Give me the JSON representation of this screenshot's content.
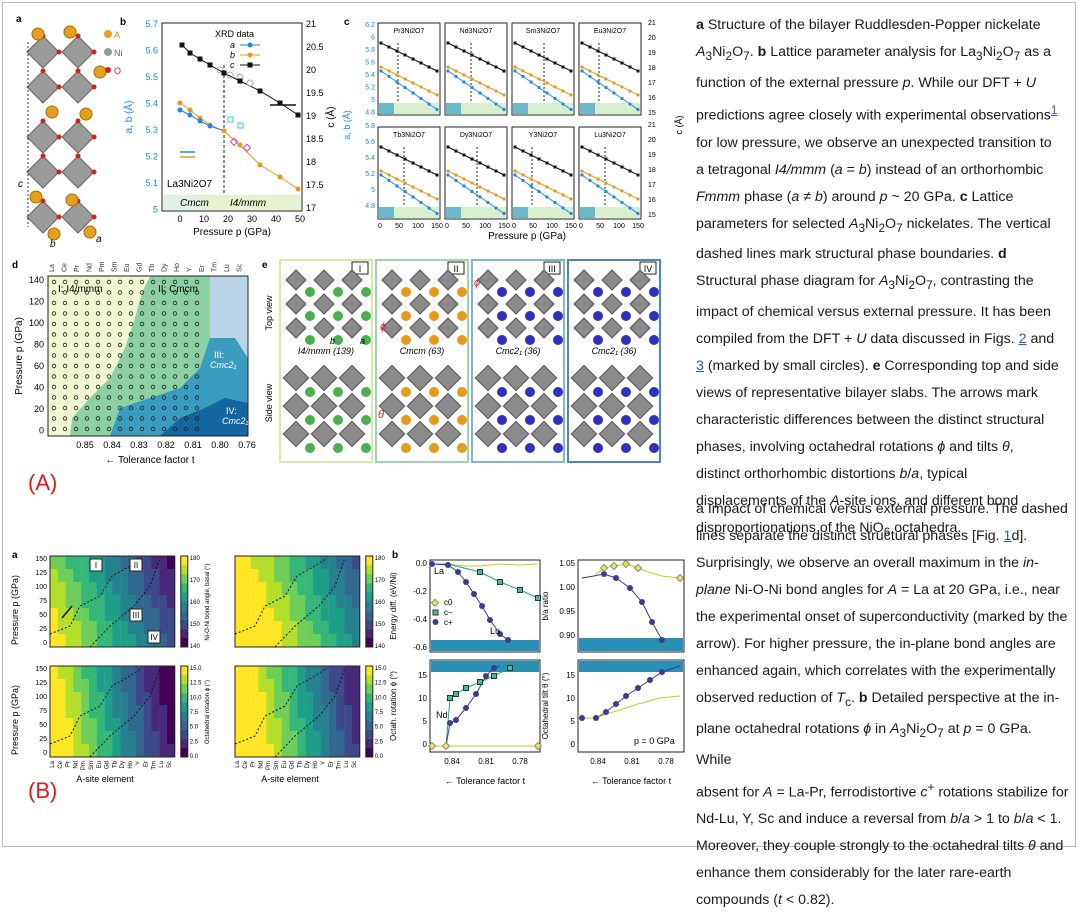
{
  "figure_A": {
    "panel_labels": {
      "a": "a",
      "b": "b",
      "c": "c",
      "d": "d",
      "e": "e"
    },
    "a": {
      "atom_A": "A",
      "atom_Ni": "Ni",
      "atom_O": "O",
      "axis_a": "a",
      "axis_b": "b",
      "axis_c": "c"
    },
    "b": {
      "legend_title": "XRD data",
      "legend_entries": [
        "a",
        "b",
        "c"
      ],
      "formula": "La3Ni2O7",
      "phase_left": "Cmcm",
      "phase_right": "I4/mmm",
      "xlabel": "Pressure p (GPa)",
      "ylabel_left": "a, b (Å)",
      "ylabel_right": "c (Å)",
      "x_ticks": [
        "0",
        "10",
        "20",
        "30",
        "40",
        "50"
      ],
      "y_left_ticks": [
        "5.7",
        "5.6",
        "5.5",
        "5.4",
        "5.3",
        "5.2",
        "5.1",
        "5"
      ],
      "y_right_ticks": [
        "21",
        "20.5",
        "20",
        "19.5",
        "19",
        "18.5",
        "18",
        "17.5",
        "17"
      ]
    },
    "c": {
      "subplots": [
        "Pr3Ni2O7",
        "Nd3Ni2O7",
        "Sm3Ni2O7",
        "Eu3Ni2O7",
        "Tb3Ni2O7",
        "Dy3Ni2O7",
        "Y3Ni2O7",
        "Lu3Ni2O7"
      ],
      "xlabel": "Pressure p (GPa)",
      "ylabel_left": "a, b (Å)",
      "ylabel_right": "c (Å)",
      "x_ticks": [
        "0",
        "50",
        "100",
        "150"
      ],
      "y_left_ticks": [
        "6.2",
        "6",
        "5.8",
        "5.6",
        "5.4",
        "5.2",
        "5",
        "4.8"
      ],
      "y_left_ticks_bottom": [
        "5.8",
        "5.6",
        "5.4",
        "5.2",
        "5",
        "4.8"
      ],
      "y_right_ticks": [
        "21",
        "20",
        "19",
        "18",
        "17",
        "16",
        "15"
      ]
    },
    "d": {
      "top_elements": [
        "La",
        "Ce",
        "Pr",
        "Nd",
        "Pm",
        "Sm",
        "Eu",
        "Gd",
        "Tb",
        "Dy",
        "Ho",
        "Y",
        "Er",
        "Tm",
        "Lu",
        "Sc"
      ],
      "region_I": "I: I4/mmm",
      "region_II": "II: Cmcm",
      "region_III": "III:",
      "region_III_b": "Cmc2₁",
      "region_IV": "IV:",
      "region_IV_b": "Cmc2₁",
      "ylabel": "Pressure p (GPa)",
      "xlabel": "← Tolerance factor t",
      "x_ticks": [
        "0.85",
        "0.84",
        "0.83",
        "0.82",
        "0.81",
        "0.80",
        "0.76"
      ],
      "y_ticks": [
        "140",
        "120",
        "100",
        "80",
        "60",
        "40",
        "20",
        "0"
      ]
    },
    "e": {
      "phases": [
        "I",
        "II",
        "III",
        "IV"
      ],
      "names": [
        "I4/mmm (139)",
        "Cmcm (63)",
        "Cmc2₁ (36)",
        "Cmc2₁ (36)"
      ],
      "top_view": "Top view",
      "side_view": "Side view",
      "phi": "ϕ",
      "theta": "θ",
      "b_axis": "b",
      "a_axis": "a"
    },
    "tag": "(A)"
  },
  "caption_A": [
    "a Structure of the bilayer Ruddlesden-Popper nickelate",
    "A3Ni2O7. b Lattice parameter analysis for La3Ni2O7 as a",
    "function of the external pressure p. While our DFT + U",
    "predictions agree closely with experimental observations1",
    "for low pressure, we observe an unexpected transition to",
    "a tetragonal I4/mmm (a = b) instead of an orthorhombic",
    "Fmmm phase (a ≠ b) around p ~ 20 GPa. c Lattice",
    "parameters for selected A3Ni2O7 nickelates. The vertical",
    "dashed lines mark structural phase boundaries. d",
    "Structural phase diagram for A3Ni2O7, contrasting the",
    "impact of chemical versus external pressure. It has been",
    "compiled from the DFT + U data discussed in Figs. 2 and",
    "3 (marked by small circles). e Corresponding top and side",
    "views of representative bilayer slabs. The arrows mark",
    "characteristic differences between the distinct structural",
    "phases, involving octahedral rotations ϕ and tilts θ,",
    "distinct orthorhombic distortions b/a, typical",
    "displacements of the A-site ions, and different bond",
    "disproportionations of the NiO6 octahedra."
  ],
  "figure_B": {
    "panel_labels": {
      "a": "a",
      "b": "b"
    },
    "heatmaps": {
      "ylabel": "Pressure p (GPa)",
      "xlabel": "A-site element",
      "x_elements": [
        "La",
        "Ce",
        "Pr",
        "Nd",
        "Pm",
        "Sm",
        "Eu",
        "Gd",
        "Tb",
        "Dy",
        "Ho",
        "Y",
        "Er",
        "Tm",
        "Lu",
        "Sc"
      ],
      "y_ticks": [
        "150",
        "125",
        "100",
        "75",
        "50",
        "25",
        "0"
      ],
      "cbar1_label": "Ni-O-Ni bond angle, basal (°)",
      "cbar2_label": "Ni-O-Ni bond angle, apical (°)",
      "cbar3_label": "Octahedral rotation ϕ (°)",
      "cbar4_label": "Octahedral tilt θ (°)",
      "cbar_top_ticks": [
        "180",
        "170",
        "160",
        "150",
        "140"
      ],
      "cbar_bot_ticks": [
        "15.0",
        "12.5",
        "10.0",
        "7.5",
        "5.0",
        "2.5",
        "0.0"
      ],
      "regions": [
        "I",
        "II",
        "III",
        "IV"
      ]
    },
    "panel_b": {
      "energy_ylabel": "Energy diff. (eV/Ni)",
      "energy_ticks": [
        "0.0",
        "-0.2",
        "-0.4",
        "-0.6"
      ],
      "legend": [
        "c0",
        "c−",
        "c+"
      ],
      "la": "La",
      "lu": "Lu",
      "ba_ylabel": "b/a ratio",
      "ba_ticks": [
        "1.05",
        "1.00",
        "0.95",
        "0.90"
      ],
      "phi_ylabel": "Octah. rotation ϕ (°)",
      "theta_ylabel": "Octahedral tilt θ (°)",
      "rot_ticks": [
        "15",
        "10",
        "5",
        "0"
      ],
      "nd": "Nd",
      "p0": "p = 0 GPa",
      "x_ticks": [
        "0.84",
        "0.81",
        "0.78"
      ],
      "xlabel": "← Tolerance factor t"
    },
    "tag": "(B)"
  },
  "caption_B": [
    "a Impact of chemical versus external pressure. The dashed",
    "lines separate the distinct structural phases [Fig. 1d].",
    "Surprisingly, we observe an overall maximum in the in-",
    "plane Ni-O-Ni bond angles for A = La at 20 GPa, i.e., near",
    "the experimental onset of superconductivity (marked by the",
    "arrow). For higher pressure, the in-plane bond angles are",
    "enhanced again, which correlates with the experimentally",
    "observed reduction of Tc. b Detailed perspective at the in-",
    "plane octahedral rotations ϕ in A3Ni2O7 at p = 0 GPa. While",
    "absent for A = La-Pr, ferrodistortive c+ rotations stabilize for",
    "Nd-Lu, Y, Sc and induce a reversal from b/a > 1 to b/a < 1.",
    "Moreover, they couple strongly to the octahedral tilts θ and",
    "enhance them considerably for the later rare-earth",
    "compounds (t < 0.82)."
  ],
  "colors": {
    "blue": "#1e88e5",
    "orange": "#e69a1a",
    "black": "#111111",
    "tag_red": "#e01818"
  }
}
